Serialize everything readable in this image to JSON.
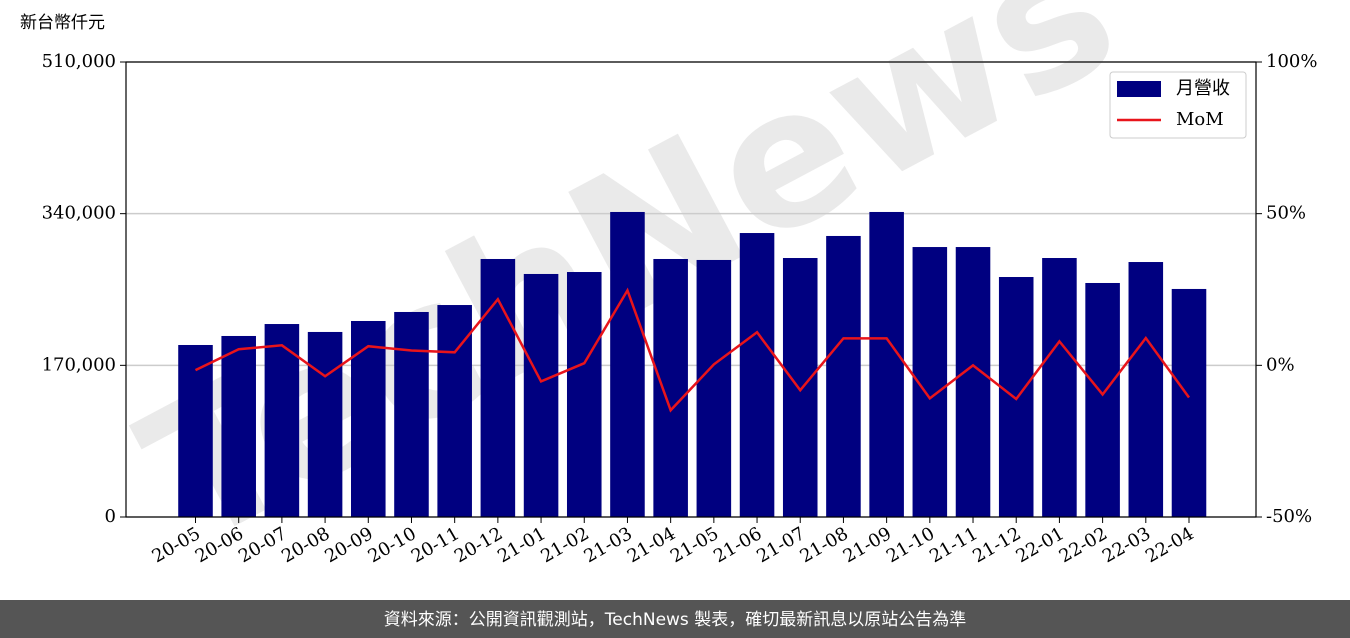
{
  "chart_data": {
    "type": "bar-line",
    "y_label": "新台幣仟元",
    "watermark": "TechNews",
    "footer": "資料來源：公開資訊觀測站，TechNews 製表，確切最新訊息以原站公告為準",
    "categories": [
      "20-05",
      "20-06",
      "20-07",
      "20-08",
      "20-09",
      "20-10",
      "20-11",
      "20-12",
      "21-01",
      "21-02",
      "21-03",
      "21-04",
      "21-05",
      "21-06",
      "21-07",
      "21-08",
      "21-09",
      "21-10",
      "21-11",
      "21-12",
      "22-01",
      "22-02",
      "22-03",
      "22-04"
    ],
    "series": [
      {
        "name": "月營收",
        "type": "bar",
        "color": "#000080",
        "values": [
          192800,
          202900,
          216300,
          207400,
          219700,
          229800,
          237600,
          289200,
          272400,
          274600,
          341900,
          289200,
          288100,
          318300,
          290300,
          315000,
          341900,
          302600,
          302600,
          269000,
          290300,
          262300,
          285800,
          255600
        ]
      },
      {
        "name": "MoM",
        "type": "line",
        "color": "#e8141b",
        "axis": "y2",
        "values": [
          -1.6,
          5.3,
          6.6,
          -3.6,
          6.3,
          4.9,
          4.3,
          21.8,
          -5.3,
          0.7,
          24.7,
          -14.8,
          0.3,
          10.9,
          -8.2,
          8.9,
          8.9,
          -10.9,
          0.0,
          -11.1,
          7.9,
          -9.6,
          9.0,
          -10.6
        ]
      }
    ],
    "ylim": [
      0,
      510000
    ],
    "yticks": [
      {
        "value": 0,
        "label": "0"
      },
      {
        "value": 170000,
        "label": "170,000"
      },
      {
        "value": 340000,
        "label": "340,000"
      },
      {
        "value": 510000,
        "label": "510,000"
      }
    ],
    "y2lim": [
      -50,
      100
    ],
    "y2ticks": [
      {
        "value": -50,
        "label": "-50%"
      },
      {
        "value": 0,
        "label": "0%"
      },
      {
        "value": 50,
        "label": "50%"
      },
      {
        "value": 100,
        "label": "100%"
      }
    ],
    "grid": true,
    "legend": "upper right"
  }
}
